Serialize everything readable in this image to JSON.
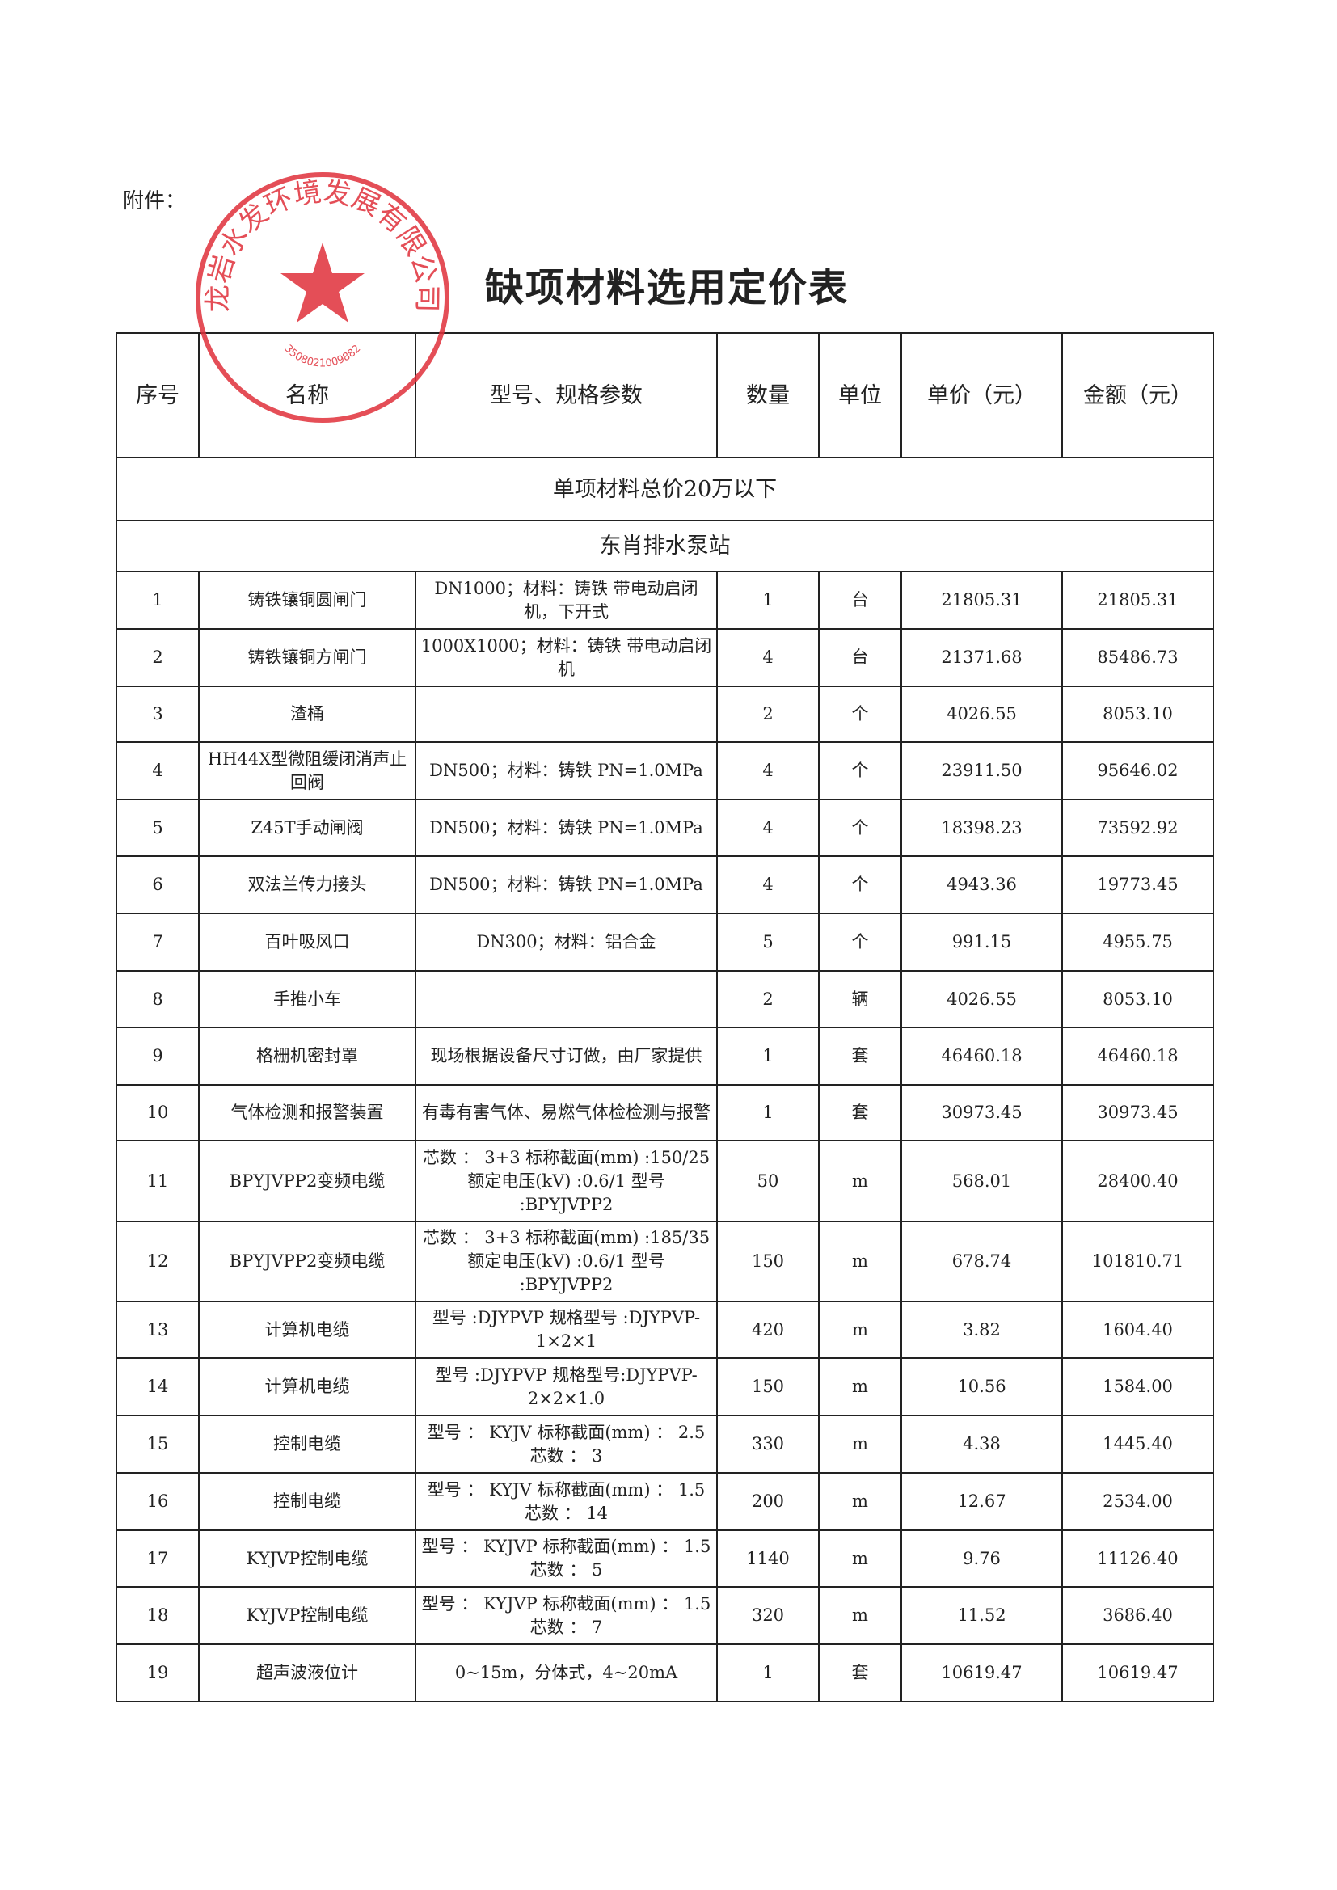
{
  "attachment_label": "附件：",
  "title": "缺项材料选用定价表",
  "stamp": {
    "text": "龙岩水发环境发展有限公司",
    "number": "3508021009882",
    "color": "#e0303a"
  },
  "headers": [
    "序号",
    "名称",
    "型号、规格参数",
    "数量",
    "单位",
    "单价（元）",
    "金额（元）"
  ],
  "section": "单项材料总价20万以下",
  "subsection": "东肖排水泵站",
  "rows": [
    {
      "no": "1",
      "name": "铸铁镶铜圆闸门",
      "spec": "DN1000；材料：铸铁 带电动启闭机，下开式",
      "qty": "1",
      "unit": "台",
      "price": "21805.31",
      "amount": "21805.31"
    },
    {
      "no": "2",
      "name": "铸铁镶铜方闸门",
      "spec": "1000X1000；材料：铸铁 带电动启闭机",
      "qty": "4",
      "unit": "台",
      "price": "21371.68",
      "amount": "85486.73"
    },
    {
      "no": "3",
      "name": "渣桶",
      "spec": "",
      "qty": "2",
      "unit": "个",
      "price": "4026.55",
      "amount": "8053.10"
    },
    {
      "no": "4",
      "name": "HH44X型微阻缓闭消声止回阀",
      "spec": "DN500；材料：铸铁 PN=1.0MPa",
      "qty": "4",
      "unit": "个",
      "price": "23911.50",
      "amount": "95646.02"
    },
    {
      "no": "5",
      "name": "Z45T手动闸阀",
      "spec": "DN500；材料：铸铁 PN=1.0MPa",
      "qty": "4",
      "unit": "个",
      "price": "18398.23",
      "amount": "73592.92"
    },
    {
      "no": "6",
      "name": "双法兰传力接头",
      "spec": "DN500；材料：铸铁 PN=1.0MPa",
      "qty": "4",
      "unit": "个",
      "price": "4943.36",
      "amount": "19773.45"
    },
    {
      "no": "7",
      "name": "百叶吸风口",
      "spec": "DN300；材料：铝合金",
      "qty": "5",
      "unit": "个",
      "price": "991.15",
      "amount": "4955.75"
    },
    {
      "no": "8",
      "name": "手推小车",
      "spec": "",
      "qty": "2",
      "unit": "辆",
      "price": "4026.55",
      "amount": "8053.10"
    },
    {
      "no": "9",
      "name": "格栅机密封罩",
      "spec": "现场根据设备尺寸订做，由厂家提供",
      "qty": "1",
      "unit": "套",
      "price": "46460.18",
      "amount": "46460.18"
    },
    {
      "no": "10",
      "name": "气体检测和报警装置",
      "spec": "有毒有害气体、易燃气体检检测与报警",
      "qty": "1",
      "unit": "套",
      "price": "30973.45",
      "amount": "30973.45"
    },
    {
      "no": "11",
      "name": "BPYJVPP2变频电缆",
      "spec": "芯数 ： 3+3 标称截面(mm) :150/25  额定电压(kV) :0.6/1 型号 :BPYJVPP2",
      "qty": "50",
      "unit": "m",
      "price": "568.01",
      "amount": "28400.40"
    },
    {
      "no": "12",
      "name": "BPYJVPP2变频电缆",
      "spec": "芯数 ： 3+3 标称截面(mm) :185/35  额定电压(kV) :0.6/1 型号 :BPYJVPP2",
      "qty": "150",
      "unit": "m",
      "price": "678.74",
      "amount": "101810.71"
    },
    {
      "no": "13",
      "name": "计算机电缆",
      "spec": "型号 :DJYPVP  规格型号 :DJYPVP-1×2×1",
      "qty": "420",
      "unit": "m",
      "price": "3.82",
      "amount": "1604.40"
    },
    {
      "no": "14",
      "name": "计算机电缆",
      "spec": "型号 :DJYPVP  规格型号:DJYPVP-2×2×1.0",
      "qty": "150",
      "unit": "m",
      "price": "10.56",
      "amount": "1584.00"
    },
    {
      "no": "15",
      "name": "控制电缆",
      "spec": "型号 ： KYJV 标称截面(mm) ： 2.5 芯数 ： 3",
      "qty": "330",
      "unit": "m",
      "price": "4.38",
      "amount": "1445.40"
    },
    {
      "no": "16",
      "name": "控制电缆",
      "spec": "型号 ： KYJV 标称截面(mm) ： 1.5 芯数 ： 14",
      "qty": "200",
      "unit": "m",
      "price": "12.67",
      "amount": "2534.00"
    },
    {
      "no": "17",
      "name": "KYJVP控制电缆",
      "spec": "型号 ： KYJVP 标称截面(mm) ： 1.5 芯数 ： 5",
      "qty": "1140",
      "unit": "m",
      "price": "9.76",
      "amount": "11126.40"
    },
    {
      "no": "18",
      "name": "KYJVP控制电缆",
      "spec": "型号 ： KYJVP 标称截面(mm) ： 1.5 芯数 ： 7",
      "qty": "320",
      "unit": "m",
      "price": "11.52",
      "amount": "3686.40"
    },
    {
      "no": "19",
      "name": "超声波液位计",
      "spec": "0~15m，分体式，4~20mA",
      "qty": "1",
      "unit": "套",
      "price": "10619.47",
      "amount": "10619.47"
    }
  ]
}
